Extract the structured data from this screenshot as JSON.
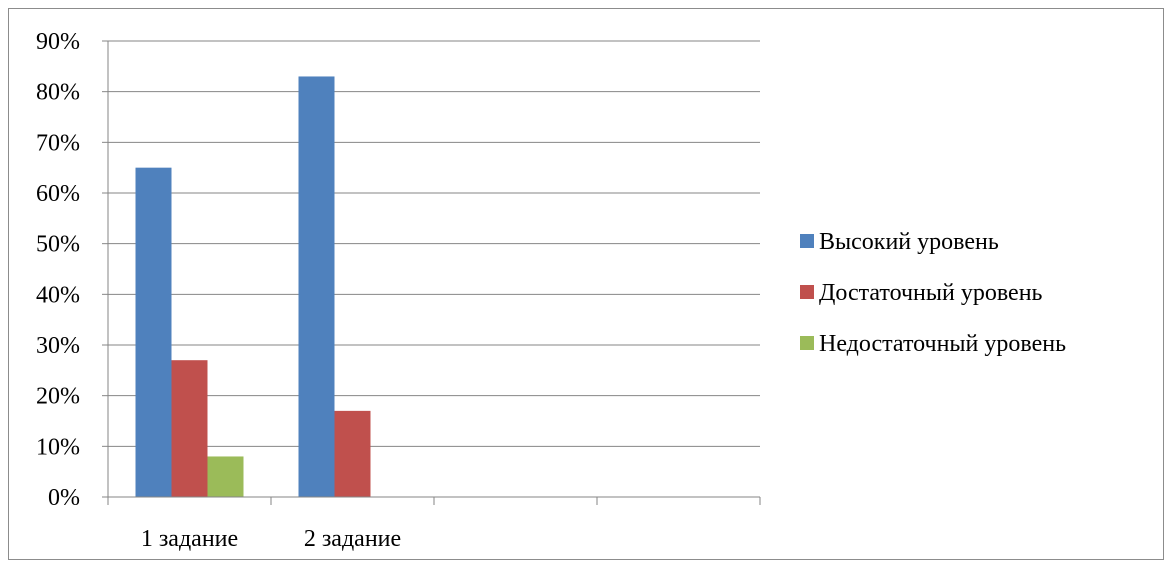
{
  "chart_data": {
    "type": "bar",
    "title": "",
    "xlabel": "",
    "ylabel": "",
    "categories": [
      "1 задание",
      "2 задание",
      "",
      ""
    ],
    "ylim": [
      0,
      0.9
    ],
    "ytick_labels": [
      "0%",
      "10%",
      "20%",
      "30%",
      "40%",
      "50%",
      "60%",
      "70%",
      "80%",
      "90%"
    ],
    "grid": true,
    "legend_position": "right",
    "series": [
      {
        "name": "Высокий уровень",
        "color": "#4f81bd",
        "values": [
          0.65,
          0.83,
          null,
          null
        ]
      },
      {
        "name": "Достаточный уровень",
        "color": "#c0504d",
        "values": [
          0.27,
          0.17,
          null,
          null
        ]
      },
      {
        "name": "Недостаточный уровень",
        "color": "#9bbb59",
        "values": [
          0.08,
          0.0,
          null,
          null
        ]
      }
    ]
  }
}
